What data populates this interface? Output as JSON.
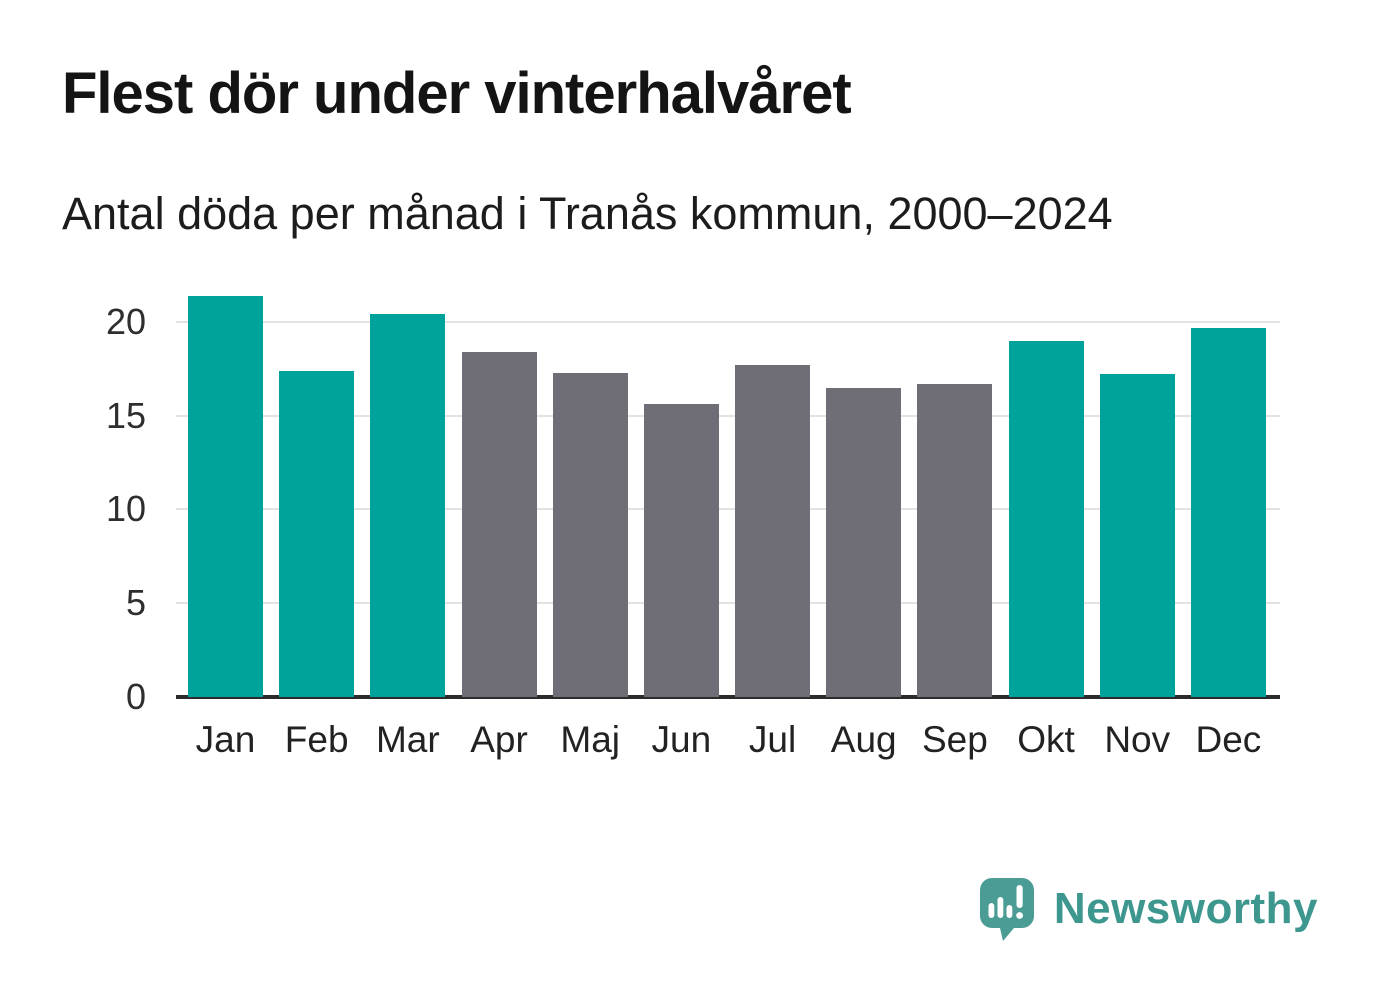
{
  "chart_data": {
    "type": "bar",
    "title": "Flest dör under vinterhalvåret",
    "subtitle": "Antal döda per månad i Tranås kommun, 2000–2024",
    "categories": [
      "Jan",
      "Feb",
      "Mar",
      "Apr",
      "Maj",
      "Jun",
      "Jul",
      "Aug",
      "Sep",
      "Okt",
      "Nov",
      "Dec"
    ],
    "values": [
      21.4,
      17.4,
      20.4,
      18.4,
      17.3,
      15.6,
      17.7,
      16.5,
      16.7,
      19.0,
      17.2,
      19.7
    ],
    "highlight": [
      true,
      true,
      true,
      false,
      false,
      false,
      false,
      false,
      false,
      true,
      true,
      true
    ],
    "highlight_color": "#00a39b",
    "base_color": "#6f6e76",
    "xlabel": "",
    "ylabel": "",
    "yticks": [
      0,
      5,
      10,
      15,
      20
    ],
    "ylim": [
      0,
      21.7
    ],
    "grid": "horizontal",
    "grid_color": "#e3e3e3",
    "axis_color": "#2b2b2b",
    "legend": "none"
  },
  "branding": {
    "logo_text": "Newsworthy",
    "logo_icon": "bar-chart-speech-bubble-icon",
    "logo_text_color": "#3d978f",
    "logo_icon_color": "#4a9c95"
  }
}
